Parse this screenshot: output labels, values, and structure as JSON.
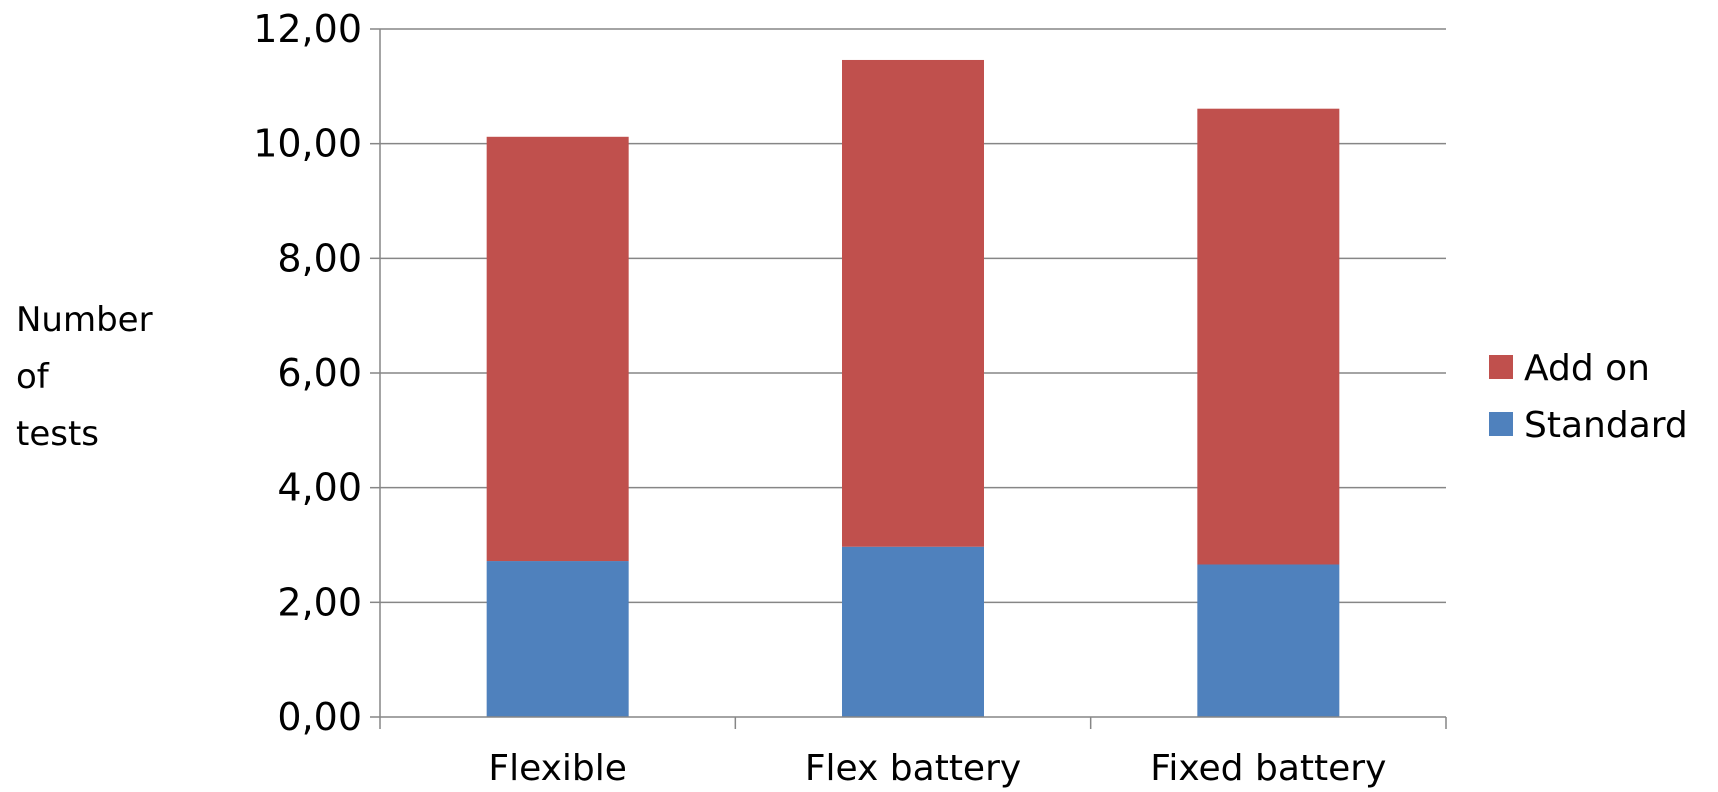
{
  "chart_data": {
    "type": "bar",
    "stacked": true,
    "categories": [
      "Flexible",
      "Flex battery",
      "Fixed battery"
    ],
    "series": [
      {
        "name": "Standard",
        "values": [
          2.72,
          2.97,
          2.66
        ],
        "color": "#4F81BD"
      },
      {
        "name": "Add on",
        "values": [
          7.4,
          8.49,
          7.95
        ],
        "color": "#C0504D"
      }
    ],
    "ylabel": [
      "Number",
      "of",
      "tests"
    ],
    "ylim": [
      0,
      12
    ],
    "yticks": [
      "0,00",
      "2,00",
      "4,00",
      "6,00",
      "8,00",
      "10,00",
      "12,00"
    ],
    "legend_order": [
      "Add on",
      "Standard"
    ],
    "legend_placement": "right",
    "grid": true,
    "gridline_color": "#868686"
  }
}
